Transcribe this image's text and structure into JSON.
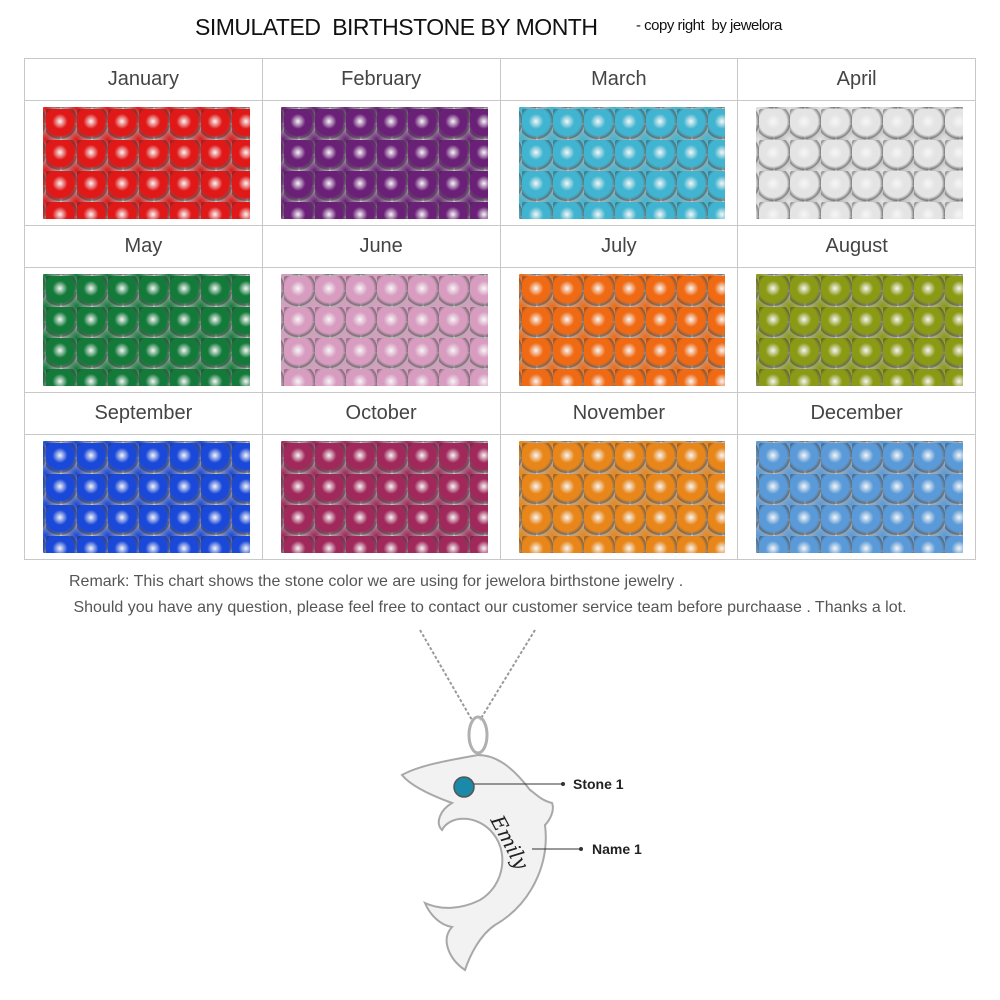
{
  "header": {
    "title": "SIMULATED  BIRTHSTONE BY MONTH",
    "copyright": "- copy right  by jewelora"
  },
  "months": [
    {
      "name": "January",
      "color": "#e01818"
    },
    {
      "name": "February",
      "color": "#6a2077"
    },
    {
      "name": "March",
      "color": "#40b4d0"
    },
    {
      "name": "April",
      "color": "#e4e4e4"
    },
    {
      "name": "May",
      "color": "#137a3a"
    },
    {
      "name": "June",
      "color": "#d89cc0"
    },
    {
      "name": "July",
      "color": "#f06a14"
    },
    {
      "name": "August",
      "color": "#8a9a14"
    },
    {
      "name": "September",
      "color": "#1a48d8"
    },
    {
      "name": "October",
      "color": "#a0285a"
    },
    {
      "name": "November",
      "color": "#e8861a"
    },
    {
      "name": "December",
      "color": "#5a9ad8"
    }
  ],
  "remark": {
    "line1": "Remark: This chart shows the stone color we are using for jewelora birthstone jewelry .",
    "line2": " Should you have any question, please feel free to contact our customer service team before purchaase . Thanks a lot."
  },
  "product": {
    "engraving": "Emily",
    "stone_label": "Stone 1",
    "name_label": "Name 1",
    "stone_color": "#1a8aa8"
  }
}
